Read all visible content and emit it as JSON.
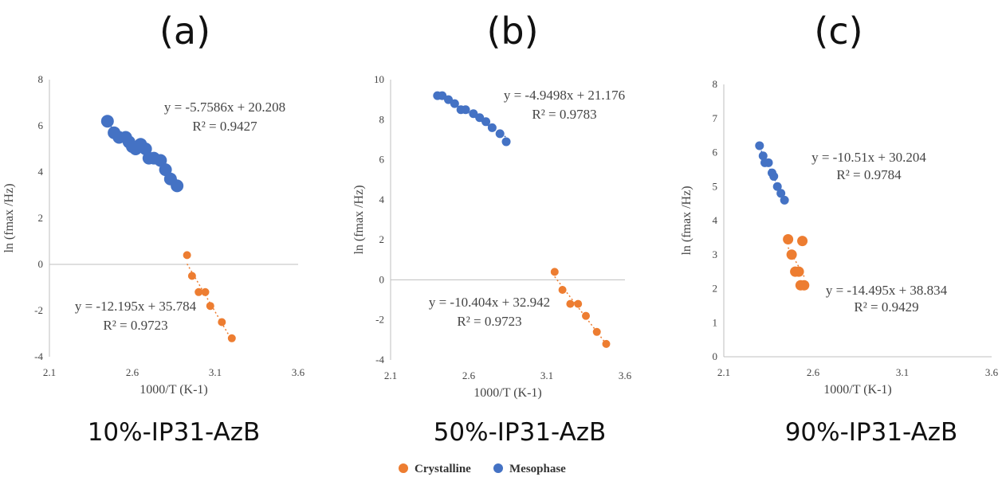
{
  "legend": {
    "items": [
      {
        "label": "Crystalline",
        "color": "#ED7D31"
      },
      {
        "label": "Mesophase",
        "color": "#4472C4"
      }
    ]
  },
  "chart_data": [
    {
      "type": "scatter",
      "panel_label": "(a)",
      "caption": "10%-IP31-AzB",
      "xlabel": "1000/T (K-1)",
      "ylabel": "ln (fmax /Hz)",
      "xlim": [
        2.1,
        3.6
      ],
      "ylim": [
        -4,
        8
      ],
      "xticks": [
        "2.1",
        "2.6",
        "3.1",
        "3.6"
      ],
      "yticks": [
        "-4",
        "-2",
        "0",
        "2",
        "4",
        "6",
        "8"
      ],
      "series": [
        {
          "name": "Mesophase",
          "color": "#4472C4",
          "x": [
            2.45,
            2.49,
            2.52,
            2.56,
            2.58,
            2.6,
            2.62,
            2.65,
            2.68,
            2.7,
            2.73,
            2.77,
            2.8,
            2.83,
            2.87
          ],
          "y": [
            6.2,
            5.7,
            5.5,
            5.5,
            5.3,
            5.1,
            5.0,
            5.2,
            5.0,
            4.6,
            4.6,
            4.5,
            4.1,
            3.7,
            3.4
          ],
          "equation": "y = -5.7586x + 20.208",
          "r2": "R² = 0.9427"
        },
        {
          "name": "Crystalline",
          "color": "#ED7D31",
          "x": [
            2.93,
            2.96,
            3.0,
            3.04,
            3.07,
            3.14,
            3.2
          ],
          "y": [
            0.4,
            -0.5,
            -1.2,
            -1.2,
            -1.8,
            -2.5,
            -3.2
          ],
          "equation": "y = -12.195x + 35.784",
          "r2": "R² = 0.9723"
        }
      ]
    },
    {
      "type": "scatter",
      "panel_label": "(b)",
      "caption": "50%-IP31-AzB",
      "xlabel": "1000/T (K-1)",
      "ylabel": "ln (fmax /Hz)",
      "xlim": [
        2.1,
        3.6
      ],
      "ylim": [
        -4,
        10
      ],
      "xticks": [
        "2.1",
        "2.6",
        "3.1",
        "3.6"
      ],
      "yticks": [
        "-4",
        "-2",
        "0",
        "2",
        "4",
        "6",
        "8",
        "10"
      ],
      "series": [
        {
          "name": "Mesophase",
          "color": "#4472C4",
          "x": [
            2.4,
            2.43,
            2.47,
            2.51,
            2.55,
            2.58,
            2.63,
            2.67,
            2.71,
            2.75,
            2.8,
            2.84
          ],
          "y": [
            9.2,
            9.2,
            9.0,
            8.8,
            8.5,
            8.5,
            8.3,
            8.1,
            7.9,
            7.6,
            7.3,
            6.9
          ],
          "equation": "y = -4.9498x + 21.176",
          "r2": "R² = 0.9783"
        },
        {
          "name": "Crystalline",
          "color": "#ED7D31",
          "x": [
            3.15,
            3.2,
            3.25,
            3.3,
            3.35,
            3.42,
            3.48
          ],
          "y": [
            0.4,
            -0.5,
            -1.2,
            -1.2,
            -1.8,
            -2.6,
            -3.2
          ],
          "equation": "y = -10.404x + 32.942",
          "r2": "R² = 0.9723"
        }
      ]
    },
    {
      "type": "scatter",
      "panel_label": "(c)",
      "caption": "90%-IP31-AzB",
      "xlabel": "1000/T (K-1)",
      "ylabel": "ln (fmax /Hz)",
      "xlim": [
        2.1,
        3.6
      ],
      "ylim": [
        0,
        8
      ],
      "xticks": [
        "2.1",
        "2.6",
        "3.1",
        "3.6"
      ],
      "yticks": [
        "0",
        "1",
        "2",
        "3",
        "4",
        "5",
        "6",
        "7",
        "8"
      ],
      "series": [
        {
          "name": "Mesophase",
          "color": "#4472C4",
          "x": [
            2.3,
            2.32,
            2.33,
            2.35,
            2.37,
            2.38,
            2.4,
            2.42,
            2.44
          ],
          "y": [
            6.2,
            5.9,
            5.7,
            5.7,
            5.4,
            5.3,
            5.0,
            4.8,
            4.6
          ],
          "equation": "y = -10.51x + 30.204",
          "r2": "R² = 0.9784"
        },
        {
          "name": "Crystalline",
          "color": "#ED7D31",
          "x": [
            2.46,
            2.48,
            2.5,
            2.52,
            2.53,
            2.55,
            2.54
          ],
          "y": [
            3.45,
            3.0,
            2.5,
            2.5,
            2.1,
            2.1,
            3.4
          ],
          "equation": "y = -14.495x + 38.834",
          "r2": "R² = 0.9429"
        }
      ]
    }
  ]
}
